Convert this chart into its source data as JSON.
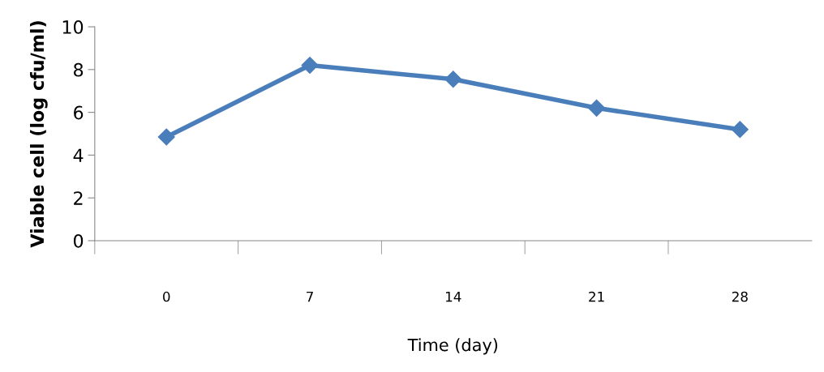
{
  "chart_data": {
    "type": "line",
    "xlabel": "Time (day)",
    "ylabel": "Viable cell (log cfu/ml)",
    "categories": [
      "0",
      "7",
      "14",
      "21",
      "28"
    ],
    "series": [
      {
        "color": "#4a7ebb",
        "values": [
          4.85,
          8.2,
          7.55,
          6.2,
          5.2
        ]
      }
    ],
    "ylim": [
      0,
      10
    ],
    "yticks": [
      0,
      2,
      4,
      6,
      8,
      10
    ],
    "grid": false,
    "legend": false,
    "marker": "diamond",
    "line_style": "solid"
  }
}
